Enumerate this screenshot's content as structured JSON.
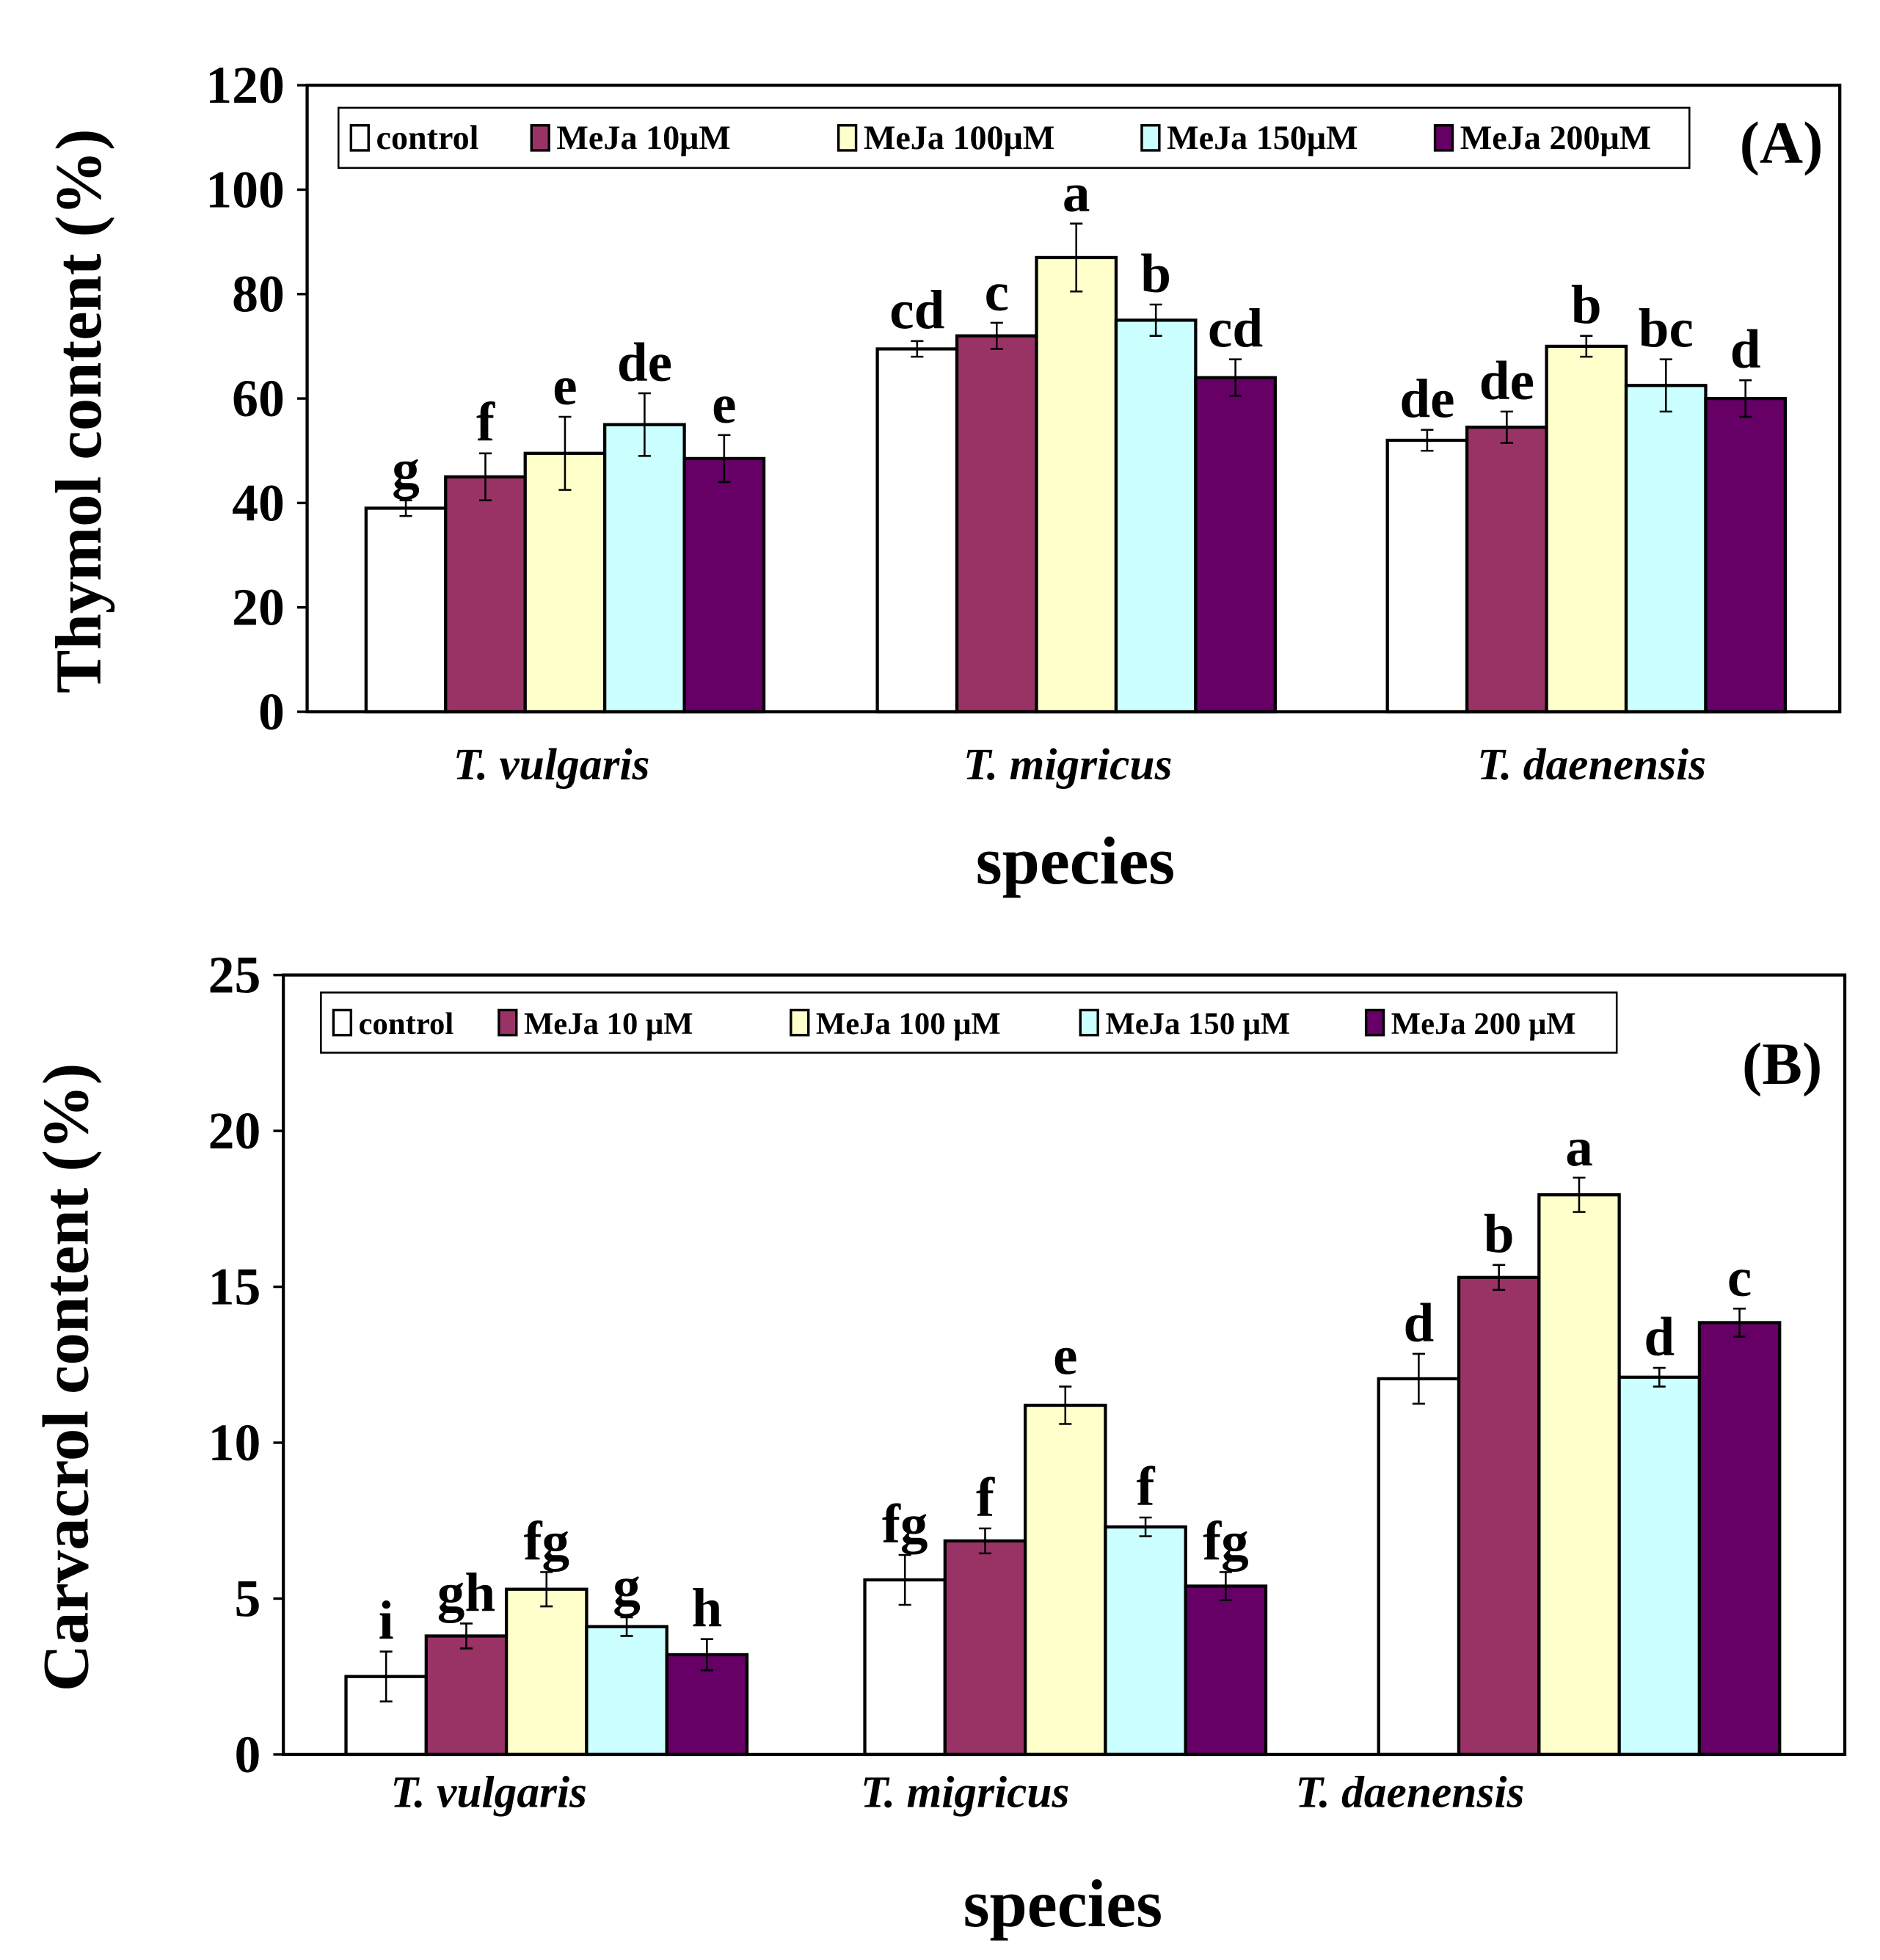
{
  "chart_data": [
    {
      "type": "bar",
      "panel_label": "(A)",
      "ylabel": "Thymol content (%)",
      "xlabel": "species",
      "ylim": [
        0,
        120
      ],
      "yticks": [
        "0",
        "20",
        "40",
        "60",
        "80",
        "100",
        "120"
      ],
      "categories": [
        "T. vulgaris",
        "T. migricus",
        "T. daenensis"
      ],
      "legend": [
        "control",
        "MeJa 10μM",
        "MeJa 100μM",
        "MeJa 150μM",
        "MeJa 200μM"
      ],
      "legend_placement": "top",
      "series": [
        {
          "name": "control",
          "color": "#ffffff",
          "values": [
            39,
            69.5,
            52
          ],
          "errors": [
            1.5,
            1.5,
            2
          ],
          "letters": [
            "g",
            "cd",
            "de"
          ]
        },
        {
          "name": "MeJa 10μM",
          "color": "#993366",
          "values": [
            45,
            72,
            54.5
          ],
          "errors": [
            4.5,
            2.5,
            3
          ],
          "letters": [
            "f",
            "c",
            "de"
          ]
        },
        {
          "name": "MeJa 100μM",
          "color": "#ffffcc",
          "values": [
            49.5,
            87,
            70
          ],
          "errors": [
            7,
            6.5,
            2
          ],
          "letters": [
            "e",
            "a",
            "b"
          ]
        },
        {
          "name": "MeJa 150μM",
          "color": "#ccffff",
          "values": [
            55,
            75,
            62.5
          ],
          "errors": [
            6,
            3,
            5
          ],
          "letters": [
            "de",
            "b",
            "bc"
          ]
        },
        {
          "name": "MeJa 200μM",
          "color": "#660066",
          "values": [
            48.5,
            64,
            60
          ],
          "errors": [
            4.5,
            3.5,
            3.5
          ],
          "letters": [
            "e",
            "cd",
            "d"
          ]
        }
      ]
    },
    {
      "type": "bar",
      "panel_label": "(B)",
      "ylabel": "Carvacrol content (%)",
      "xlabel": "species",
      "ylim": [
        0,
        25
      ],
      "yticks": [
        "0",
        "5",
        "10",
        "15",
        "20",
        "25"
      ],
      "categories": [
        "T. vulgaris",
        "T. migricus",
        "T. daenensis"
      ],
      "legend": [
        "control",
        "MeJa 10 μM",
        "MeJa 100 μM",
        "MeJa 150 μM",
        "MeJa 200 μM"
      ],
      "legend_placement": "top-left",
      "series": [
        {
          "name": "control",
          "color": "#ffffff",
          "values": [
            2.5,
            5.6,
            12.05
          ],
          "errors": [
            0.8,
            0.8,
            0.8
          ],
          "letters": [
            "i",
            "fg",
            "d"
          ]
        },
        {
          "name": "MeJa 10 μM",
          "color": "#993366",
          "values": [
            3.8,
            6.85,
            15.3
          ],
          "errors": [
            0.4,
            0.4,
            0.4
          ],
          "letters": [
            "gh",
            "f",
            "b"
          ]
        },
        {
          "name": "MeJa 100 μM",
          "color": "#ffffcc",
          "values": [
            5.3,
            11.2,
            17.95
          ],
          "errors": [
            0.55,
            0.6,
            0.55
          ],
          "letters": [
            "fg",
            "e",
            "a"
          ]
        },
        {
          "name": "MeJa 150 μM",
          "color": "#ccffff",
          "values": [
            4.1,
            7.3,
            12.1
          ],
          "errors": [
            0.3,
            0.3,
            0.3
          ],
          "letters": [
            "g",
            "f",
            "d"
          ]
        },
        {
          "name": "MeJa 200 μM",
          "color": "#660066",
          "values": [
            3.2,
            5.4,
            13.85
          ],
          "errors": [
            0.5,
            0.45,
            0.45
          ],
          "letters": [
            "h",
            "fg",
            "c"
          ]
        }
      ]
    }
  ]
}
